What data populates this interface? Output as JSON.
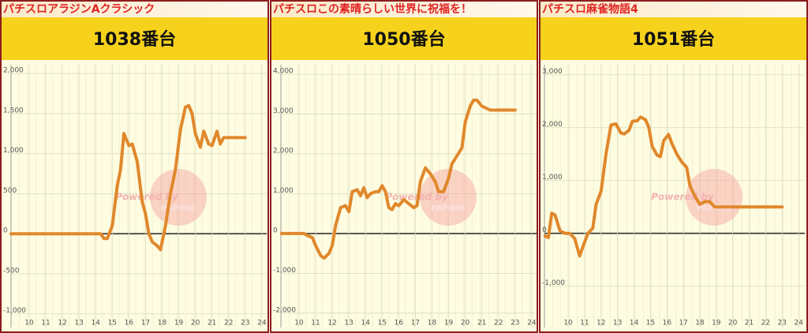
{
  "chart_data": [
    {
      "type": "line",
      "title": "パチスロアラジンAクラシック",
      "subtitle": "1038番台",
      "color": "#e0882c",
      "annotations": [
        "Powered by",
        "PAPIMO"
      ],
      "x": [
        8.91,
        14.3,
        14.5,
        14.7,
        15.0,
        15.3,
        15.5,
        15.7,
        16.0,
        16.2,
        16.5,
        16.8,
        17.0,
        17.2,
        17.4,
        17.7,
        17.9,
        18.2,
        18.5,
        18.8,
        19.1,
        19.4,
        19.6,
        19.8,
        20.0,
        20.3,
        20.5,
        20.8,
        21.0,
        21.3,
        21.5,
        21.7,
        22.0,
        23.0
      ],
      "values": [
        0,
        0,
        -60,
        -60,
        100,
        600,
        800,
        1250,
        1100,
        1120,
        900,
        400,
        250,
        0,
        -100,
        -150,
        -200,
        100,
        500,
        800,
        1300,
        1580,
        1600,
        1500,
        1250,
        1080,
        1280,
        1120,
        1100,
        1280,
        1120,
        1200,
        1200,
        1200
      ],
      "xlim": [
        8.91,
        24.29
      ],
      "ylim": [
        -1170,
        2110
      ],
      "xticks": [
        10,
        11,
        12,
        13,
        14,
        15,
        16,
        17,
        18,
        19,
        20,
        21,
        22,
        23,
        24
      ],
      "yticks": [
        {
          "value": -1000,
          "label": "-1,000"
        },
        -500,
        0,
        500,
        {
          "value": 1000,
          "label": "1,000"
        },
        {
          "value": 1500,
          "label": "1,500"
        },
        {
          "value": 2000,
          "label": "2,000"
        }
      ],
      "grid": true
    },
    {
      "type": "line",
      "title": "パチスロこの素晴らしい世界に祝福を！",
      "subtitle": "1050番台",
      "color": "#e0882c",
      "annotations": [
        "Powered by",
        "PAPIMO"
      ],
      "x": [
        8.95,
        10.3,
        10.5,
        10.8,
        11.0,
        11.3,
        11.5,
        11.8,
        12.0,
        12.2,
        12.5,
        12.8,
        13.0,
        13.2,
        13.5,
        13.7,
        13.9,
        14.1,
        14.3,
        14.6,
        14.8,
        15.0,
        15.2,
        15.4,
        15.6,
        15.8,
        16.0,
        16.3,
        16.6,
        16.9,
        17.1,
        17.3,
        17.6,
        17.9,
        18.2,
        18.4,
        18.7,
        19.0,
        19.2,
        19.5,
        19.8,
        20.0,
        20.3,
        20.5,
        20.7,
        21.0,
        21.5,
        22.0,
        23.0
      ],
      "values": [
        0,
        0,
        -50,
        -100,
        -300,
        -550,
        -620,
        -500,
        -300,
        200,
        650,
        700,
        550,
        1050,
        1100,
        950,
        1150,
        900,
        1000,
        1050,
        1050,
        1200,
        1050,
        650,
        600,
        750,
        700,
        850,
        750,
        650,
        700,
        1300,
        1650,
        1500,
        1300,
        1050,
        1050,
        1400,
        1750,
        1950,
        2150,
        2800,
        3200,
        3350,
        3350,
        3200,
        3100,
        3100,
        3100
      ],
      "xlim": [
        8.91,
        24.29
      ],
      "ylim": [
        -2360,
        4240
      ],
      "xticks": [
        10,
        11,
        12,
        13,
        14,
        15,
        16,
        17,
        18,
        19,
        20,
        21,
        22,
        23,
        24
      ],
      "yticks": [
        {
          "value": -2000,
          "label": "-2,000"
        },
        {
          "value": -1000,
          "label": "-1,000"
        },
        0,
        {
          "value": 1000,
          "label": "1,000"
        },
        {
          "value": 2000,
          "label": "2,000"
        },
        {
          "value": 3000,
          "label": "3,000"
        },
        {
          "value": 4000,
          "label": "4,000"
        }
      ],
      "grid": true
    },
    {
      "type": "line",
      "title": "パチスロ麻雀物語4",
      "subtitle": "1051番台",
      "color": "#e0882c",
      "annotations": [
        "Powered by",
        "PAPIMO"
      ],
      "x": [
        8.6,
        8.8,
        9.0,
        9.2,
        9.5,
        9.8,
        10.1,
        10.4,
        10.7,
        10.9,
        11.2,
        11.5,
        11.7,
        12.0,
        12.3,
        12.6,
        12.9,
        13.2,
        13.4,
        13.7,
        13.9,
        14.2,
        14.4,
        14.7,
        14.9,
        15.1,
        15.4,
        15.6,
        15.8,
        16.1,
        16.3,
        16.6,
        16.9,
        17.2,
        17.4,
        17.7,
        18.0,
        18.3,
        18.6,
        18.9,
        19.2,
        23.0
      ],
      "values": [
        -50,
        -80,
        380,
        350,
        50,
        0,
        0,
        -100,
        -430,
        -250,
        0,
        100,
        550,
        800,
        1500,
        2050,
        2070,
        1900,
        1880,
        1950,
        2120,
        2130,
        2200,
        2150,
        2000,
        1650,
        1480,
        1450,
        1750,
        1870,
        1700,
        1500,
        1350,
        1250,
        900,
        700,
        550,
        600,
        600,
        500,
        500,
        500
      ],
      "xlim": [
        8.56,
        24.38
      ],
      "ylim": [
        -1780,
        3190
      ],
      "xticks": [
        10,
        11,
        12,
        13,
        14,
        15,
        16,
        17,
        18,
        19,
        20,
        21,
        22,
        23,
        24
      ],
      "yticks": [
        {
          "value": -1000,
          "label": "-1,000"
        },
        0,
        {
          "value": 1000,
          "label": "1,000"
        },
        {
          "value": 2000,
          "label": "2,000"
        },
        {
          "value": 3000,
          "label": "3,000"
        }
      ],
      "grid": true
    }
  ]
}
